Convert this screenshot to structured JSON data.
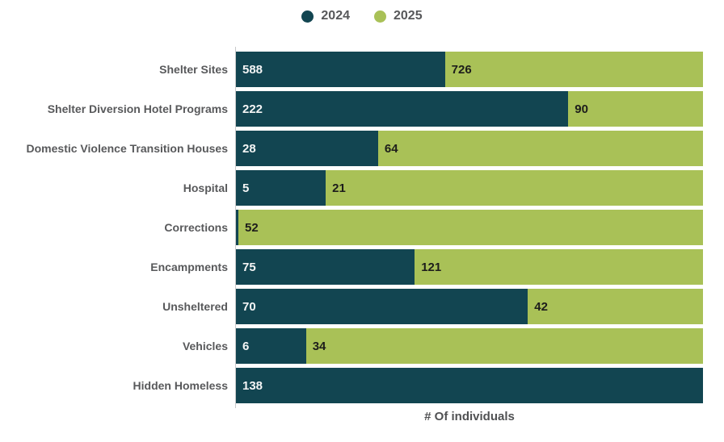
{
  "chart_data": {
    "type": "bar",
    "orientation": "horizontal",
    "stacking": "percent",
    "title": "",
    "xlabel": "# Of individuals",
    "legend_position": "top",
    "grid": false,
    "categories": [
      "Shelter Sites",
      "Shelter Diversion Hotel Programs",
      "Domestic Violence Transition Houses",
      "Hospital",
      "Corrections",
      "Encampments",
      "Unsheltered",
      "Vehicles",
      "Hidden Homeless"
    ],
    "series": [
      {
        "name": "2024",
        "color": "#124551",
        "values": [
          588,
          222,
          28,
          5,
          null,
          75,
          70,
          6,
          138
        ]
      },
      {
        "name": "2025",
        "color": "#A9C157",
        "values": [
          726,
          90,
          64,
          21,
          52,
          121,
          42,
          34,
          null
        ]
      }
    ]
  },
  "colors": {
    "series_2024": "#124551",
    "series_2025": "#A9C157",
    "label_on_dark": "#F4F5F5",
    "label_on_green": "#1D1D1B",
    "category_text": "#58595B",
    "axis_line": "#C8C9CA"
  }
}
